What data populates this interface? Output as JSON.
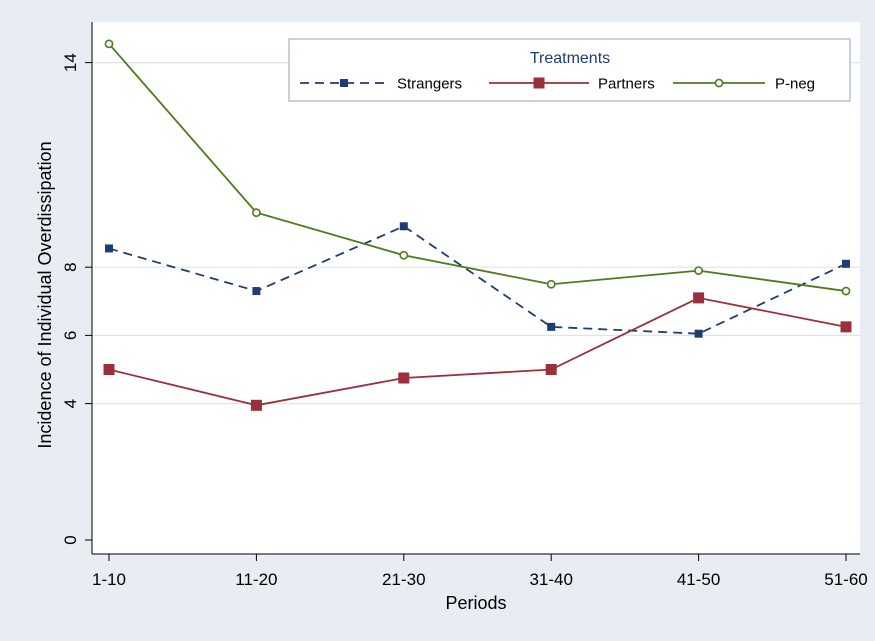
{
  "chart_data": {
    "type": "line",
    "categories": [
      "1-10",
      "11-20",
      "21-30",
      "31-40",
      "41-50",
      "51-60"
    ],
    "ylabel": "Incidence of Individual Overdissipation",
    "xlabel": "Periods",
    "yticks": [
      0,
      4,
      6,
      8,
      14
    ],
    "ylim": [
      0,
      14.6
    ],
    "grid": true,
    "legend": {
      "title": "Treatments",
      "placement": "top-right"
    },
    "series": [
      {
        "name": "Strangers",
        "color": "#1f3d73",
        "dash": "dashed",
        "marker": "square-small",
        "values": [
          8.55,
          7.3,
          9.2,
          6.25,
          6.05,
          8.1
        ]
      },
      {
        "name": "Partners",
        "color": "#9b2f3a",
        "dash": "solid",
        "marker": "square-large",
        "values": [
          5.0,
          3.95,
          4.75,
          5.0,
          7.1,
          6.25
        ]
      },
      {
        "name": "P-neg",
        "color": "#4f7a1e",
        "dash": "solid",
        "marker": "circle-hollow",
        "values": [
          14.55,
          9.6,
          8.35,
          7.5,
          7.9,
          7.3
        ]
      }
    ]
  }
}
